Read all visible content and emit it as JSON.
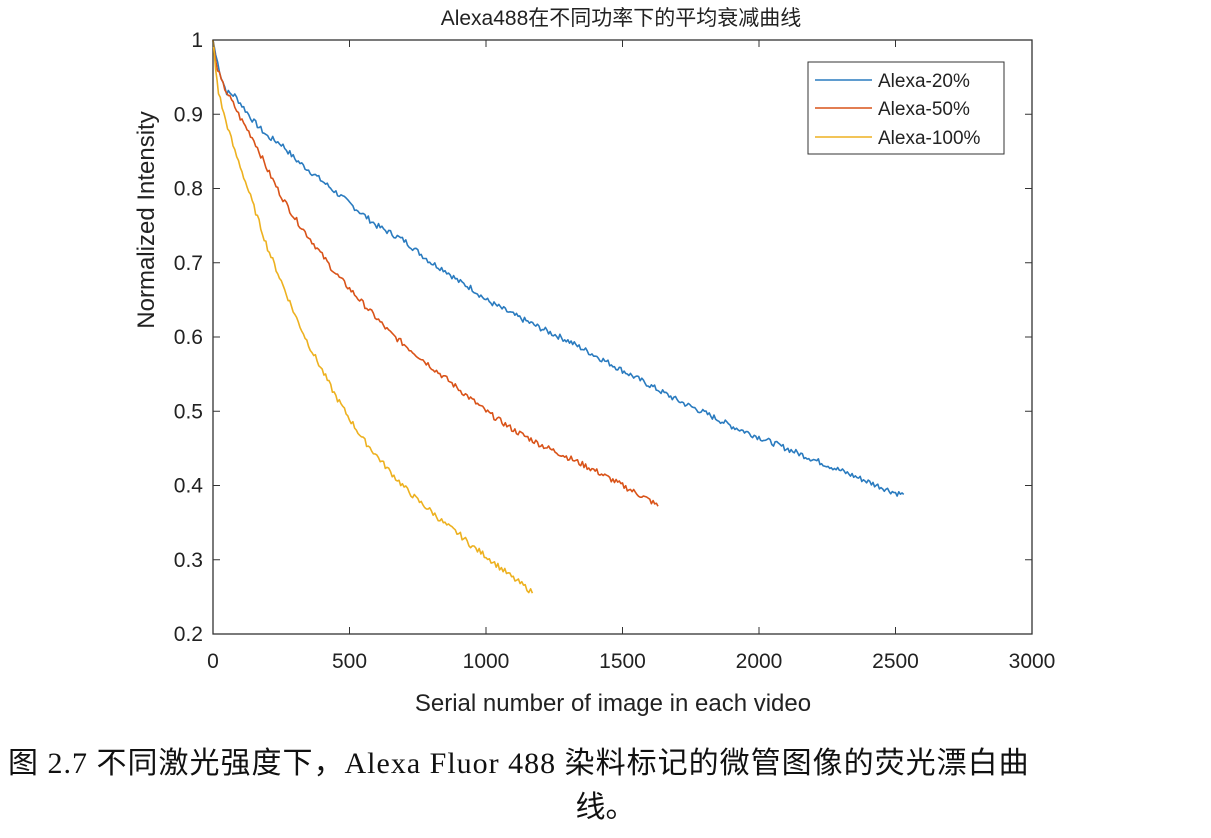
{
  "chart_data": {
    "type": "line",
    "title": "Alexa488在不同功率下的平均衰减曲线",
    "xlabel": "Serial number of image in each video",
    "ylabel": "Normalized Intensity",
    "xlim": [
      0,
      3000
    ],
    "ylim": [
      0.2,
      1
    ],
    "xticks": [
      0,
      500,
      1000,
      1500,
      2000,
      2500,
      3000
    ],
    "yticks": [
      0.2,
      0.3,
      0.4,
      0.5,
      0.6,
      0.7,
      0.8,
      0.9,
      1
    ],
    "grid": false,
    "legend_position": "top-right",
    "series": [
      {
        "name": "Alexa-20%",
        "color": "#2a7bbf",
        "x": [
          0,
          10,
          30,
          50,
          80,
          100,
          150,
          200,
          250,
          300,
          350,
          400,
          450,
          500,
          550,
          600,
          650,
          700,
          750,
          800,
          850,
          900,
          950,
          1000,
          1100,
          1200,
          1300,
          1400,
          1500,
          1600,
          1700,
          1800,
          1900,
          2000,
          2100,
          2200,
          2300,
          2400,
          2500,
          2530
        ],
        "values": [
          1.0,
          0.98,
          0.95,
          0.93,
          0.925,
          0.915,
          0.89,
          0.87,
          0.86,
          0.84,
          0.825,
          0.81,
          0.795,
          0.78,
          0.765,
          0.75,
          0.74,
          0.73,
          0.715,
          0.7,
          0.69,
          0.675,
          0.665,
          0.65,
          0.63,
          0.612,
          0.595,
          0.575,
          0.555,
          0.535,
          0.515,
          0.498,
          0.48,
          0.465,
          0.45,
          0.435,
          0.42,
          0.405,
          0.39,
          0.388
        ]
      },
      {
        "name": "Alexa-50%",
        "color": "#d95319",
        "x": [
          0,
          10,
          30,
          50,
          80,
          100,
          150,
          200,
          250,
          300,
          350,
          400,
          450,
          500,
          550,
          600,
          650,
          700,
          750,
          800,
          850,
          900,
          950,
          1000,
          1100,
          1200,
          1300,
          1400,
          1500,
          1600,
          1630
        ],
        "values": [
          1.0,
          0.97,
          0.945,
          0.93,
          0.91,
          0.895,
          0.865,
          0.825,
          0.79,
          0.76,
          0.735,
          0.71,
          0.685,
          0.665,
          0.645,
          0.625,
          0.605,
          0.59,
          0.575,
          0.56,
          0.545,
          0.53,
          0.515,
          0.5,
          0.475,
          0.455,
          0.438,
          0.42,
          0.4,
          0.38,
          0.372
        ]
      },
      {
        "name": "Alexa-100%",
        "color": "#edb120",
        "x": [
          0,
          10,
          20,
          40,
          60,
          80,
          100,
          150,
          200,
          250,
          300,
          350,
          400,
          450,
          500,
          550,
          600,
          650,
          700,
          750,
          800,
          850,
          900,
          950,
          1000,
          1050,
          1100,
          1150,
          1170
        ],
        "values": [
          1.0,
          0.96,
          0.93,
          0.9,
          0.875,
          0.85,
          0.83,
          0.775,
          0.72,
          0.675,
          0.63,
          0.59,
          0.555,
          0.52,
          0.49,
          0.462,
          0.44,
          0.418,
          0.398,
          0.38,
          0.365,
          0.348,
          0.335,
          0.318,
          0.305,
          0.29,
          0.275,
          0.262,
          0.255
        ]
      }
    ]
  },
  "caption": {
    "line1": "图 2.7 不同激光强度下，Alexa Fluor 488 染料标记的微管图像的荧光漂白曲",
    "line2": "线。"
  }
}
